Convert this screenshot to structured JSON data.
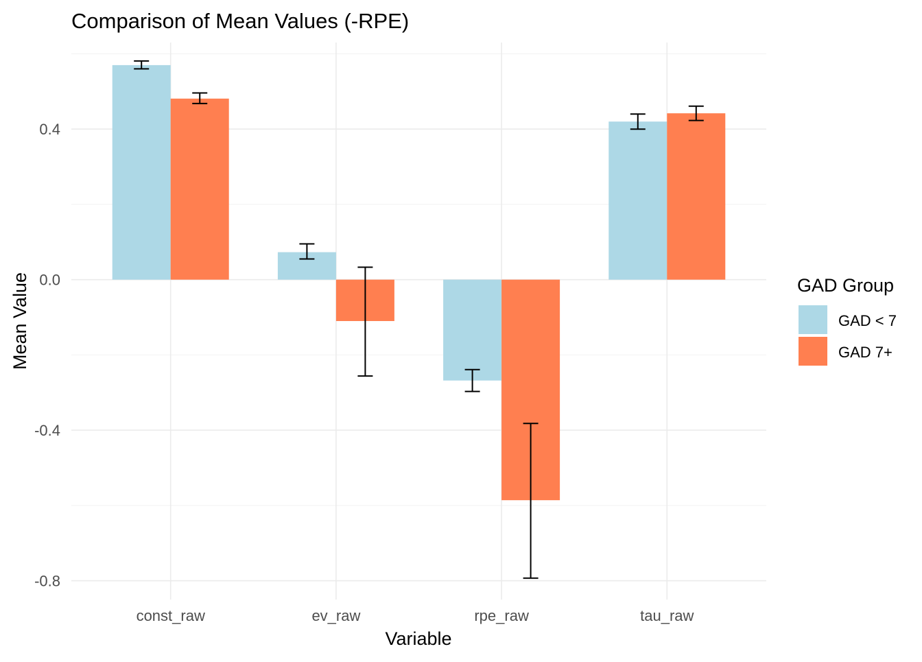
{
  "chart_data": {
    "type": "bar",
    "title": "Comparison of Mean Values (-RPE)",
    "xlabel": "Variable",
    "ylabel": "Mean Value",
    "categories": [
      "const_raw",
      "ev_raw",
      "rpe_raw",
      "tau_raw"
    ],
    "ylim": [
      -0.85,
      0.63
    ],
    "yticks": [
      -0.8,
      -0.4,
      0.0,
      0.4
    ],
    "ytick_labels": [
      "-0.8",
      "-0.4",
      "0.0",
      "0.4"
    ],
    "grid": true,
    "legend": {
      "title": "GAD Group",
      "position": "right"
    },
    "series": [
      {
        "name": "GAD < 7",
        "color": "#ADD8E6",
        "values": [
          0.57,
          0.073,
          -0.268,
          0.42
        ],
        "error_low": [
          0.56,
          0.055,
          -0.297,
          0.4
        ],
        "error_high": [
          0.581,
          0.095,
          -0.239,
          0.44
        ]
      },
      {
        "name": "GAD 7+",
        "color": "#FF7F50",
        "values": [
          0.481,
          -0.11,
          -0.586,
          0.442
        ],
        "error_low": [
          0.468,
          -0.256,
          -0.793,
          0.423
        ],
        "error_high": [
          0.496,
          0.033,
          -0.382,
          0.461
        ]
      }
    ]
  }
}
